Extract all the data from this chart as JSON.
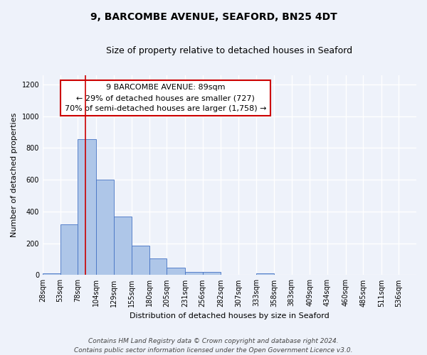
{
  "title": "9, BARCOMBE AVENUE, SEAFORD, BN25 4DT",
  "subtitle": "Size of property relative to detached houses in Seaford",
  "xlabel": "Distribution of detached houses by size in Seaford",
  "ylabel": "Number of detached properties",
  "bin_labels": [
    "28sqm",
    "53sqm",
    "78sqm",
    "104sqm",
    "129sqm",
    "155sqm",
    "180sqm",
    "205sqm",
    "231sqm",
    "256sqm",
    "282sqm",
    "307sqm",
    "333sqm",
    "358sqm",
    "383sqm",
    "409sqm",
    "434sqm",
    "460sqm",
    "485sqm",
    "511sqm",
    "536sqm"
  ],
  "bar_values": [
    10,
    320,
    855,
    600,
    370,
    185,
    105,
    45,
    22,
    18,
    0,
    0,
    12,
    0,
    0,
    0,
    0,
    0,
    0,
    0,
    0
  ],
  "bar_color": "#aec6e8",
  "bar_edge_color": "#4472c4",
  "bin_edges": [
    28,
    53,
    78,
    104,
    129,
    155,
    180,
    205,
    231,
    256,
    282,
    307,
    333,
    358,
    383,
    409,
    434,
    460,
    485,
    511,
    536,
    561
  ],
  "annotation_line1": "9 BARCOMBE AVENUE: 89sqm",
  "annotation_line2": "← 29% of detached houses are smaller (727)",
  "annotation_line3": "70% of semi-detached houses are larger (1,758) →",
  "annotation_box_color": "#ffffff",
  "annotation_box_edge_color": "#cc0000",
  "vline_x": 89,
  "ylim": [
    0,
    1260
  ],
  "yticks": [
    0,
    200,
    400,
    600,
    800,
    1000,
    1200
  ],
  "footer_line1": "Contains HM Land Registry data © Crown copyright and database right 2024.",
  "footer_line2": "Contains public sector information licensed under the Open Government Licence v3.0.",
  "background_color": "#eef2fa",
  "grid_color": "#ffffff",
  "vline_color": "#cc0000",
  "title_fontsize": 10,
  "subtitle_fontsize": 9,
  "axis_label_fontsize": 8,
  "tick_fontsize": 7,
  "annotation_fontsize": 8,
  "footer_fontsize": 6.5
}
